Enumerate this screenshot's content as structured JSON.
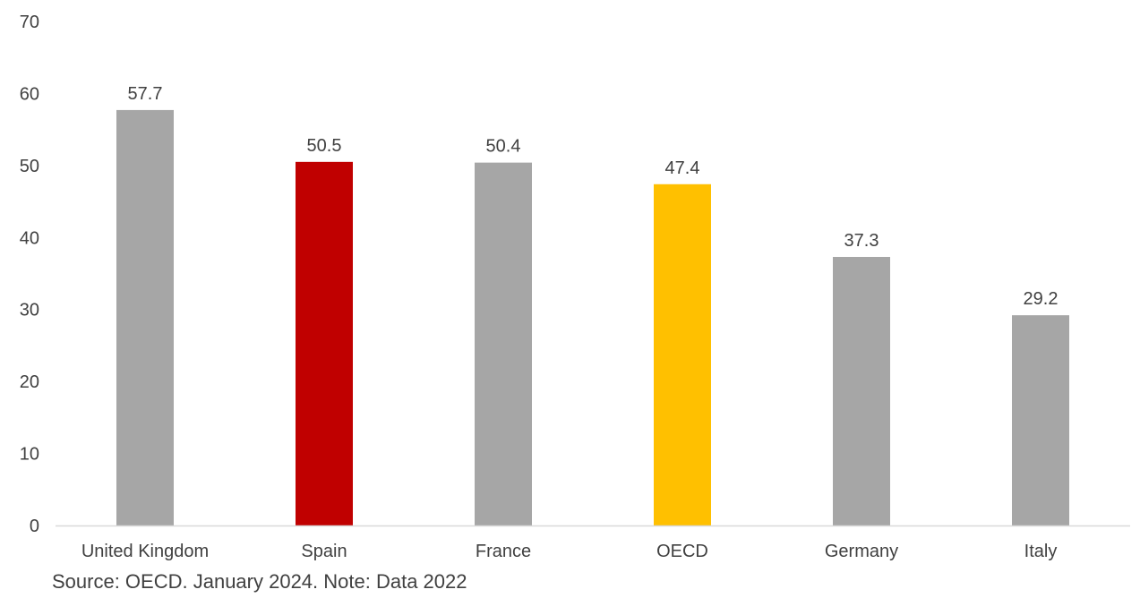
{
  "chart_data": {
    "type": "bar",
    "categories": [
      "United Kingdom",
      "Spain",
      "France",
      "OECD",
      "Germany",
      "Italy"
    ],
    "values": [
      57.7,
      50.5,
      50.4,
      47.4,
      37.3,
      29.2
    ],
    "bar_colors": [
      "#a6a6a6",
      "#c00000",
      "#a6a6a6",
      "#ffc000",
      "#a6a6a6",
      "#a6a6a6"
    ],
    "ylim": [
      0,
      70
    ],
    "yticks": [
      0,
      10,
      20,
      30,
      40,
      50,
      60,
      70
    ],
    "data_labels": [
      "57.7",
      "50.5",
      "50.4",
      "47.4",
      "37.3",
      "29.2"
    ],
    "grid": false,
    "legend": "none",
    "title": "",
    "xlabel": "",
    "ylabel": ""
  },
  "footer": {
    "source_note": "Source: OECD. January 2024. Note: Data 2022"
  },
  "colors": {
    "text": "#404040",
    "axis_line": "#d9d9d9",
    "default_bar": "#a6a6a6",
    "spain_bar": "#c00000",
    "oecd_bar": "#ffc000"
  }
}
